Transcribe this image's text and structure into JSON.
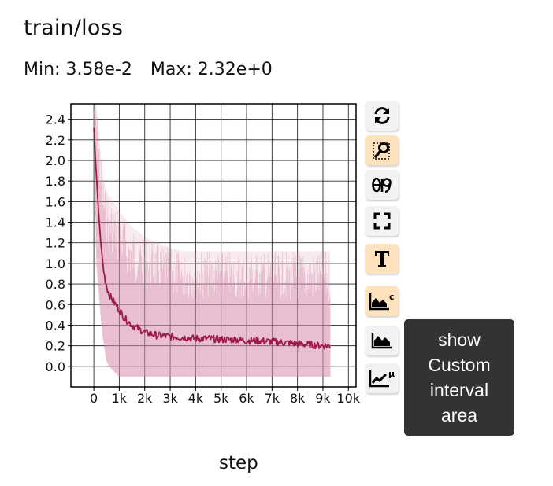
{
  "panel": {
    "title": "train/loss",
    "min_label": "Min: 3.58e-2",
    "max_label": "Max: 2.32e+0"
  },
  "toolbar": {
    "buttons": [
      {
        "icon": "refresh-icon",
        "active": false
      },
      {
        "icon": "zoom-select-icon",
        "active": true
      },
      {
        "icon": "y-log-scale-icon",
        "active": false
      },
      {
        "icon": "fullscreen-icon",
        "active": false
      },
      {
        "icon": "text-T-icon",
        "active": true
      },
      {
        "icon": "custom-interval-area-icon",
        "active": true
      },
      {
        "icon": "area-chart-icon",
        "active": false
      },
      {
        "icon": "smoothing-mu-icon",
        "active": false
      }
    ],
    "tooltip_lines": [
      "show",
      "Custom",
      "interval",
      "area"
    ]
  },
  "chart_data": {
    "type": "line",
    "xlabel": "step",
    "ylabel": "",
    "xlim": [
      -900,
      10300
    ],
    "ylim": [
      -0.2,
      2.55
    ],
    "x_ticks": [
      0,
      1000,
      2000,
      3000,
      4000,
      5000,
      6000,
      7000,
      8000,
      9000,
      10000
    ],
    "x_tick_labels": [
      "0",
      "1k",
      "2k",
      "3k",
      "4k",
      "5k",
      "6k",
      "7k",
      "8k",
      "9k",
      "10k"
    ],
    "y_ticks": [
      0.0,
      0.2,
      0.4,
      0.6,
      0.8,
      1.0,
      1.2,
      1.4,
      1.6,
      1.8,
      2.0,
      2.2,
      2.4
    ],
    "y_tick_labels": [
      "0.0",
      "0.2",
      "0.4",
      "0.6",
      "0.8",
      "1.0",
      "1.2",
      "1.4",
      "1.6",
      "1.8",
      "2.0",
      "2.2",
      "2.4"
    ],
    "grid": true,
    "line_color": "#9e1a4a",
    "band_color": "#d98fad",
    "series": [
      {
        "x": [
          0,
          100,
          200,
          300,
          400,
          500,
          600,
          800,
          1000,
          1200,
          1500,
          1800,
          2000,
          2500,
          3000,
          3500,
          4000,
          4500,
          5000,
          5500,
          6000,
          6500,
          7000,
          7500,
          8000,
          8500,
          9000,
          9300
        ],
        "y": [
          2.32,
          1.85,
          1.45,
          1.12,
          0.9,
          0.78,
          0.7,
          0.62,
          0.55,
          0.47,
          0.4,
          0.36,
          0.33,
          0.3,
          0.29,
          0.28,
          0.27,
          0.27,
          0.26,
          0.26,
          0.25,
          0.25,
          0.24,
          0.23,
          0.22,
          0.21,
          0.2,
          0.2
        ],
        "band_low": [
          2.3,
          1.0,
          0.7,
          0.4,
          0.2,
          0.05,
          0.0,
          -0.05,
          -0.1,
          -0.1,
          -0.1,
          -0.1,
          -0.1,
          -0.1,
          -0.1,
          -0.1,
          -0.1,
          -0.1,
          -0.1,
          -0.1,
          -0.1,
          -0.1,
          -0.1,
          -0.1,
          -0.1,
          -0.1,
          -0.1,
          -0.1
        ],
        "band_high": [
          2.55,
          2.55,
          2.3,
          2.0,
          1.8,
          1.7,
          1.65,
          1.6,
          1.5,
          1.45,
          1.35,
          1.3,
          1.25,
          1.2,
          1.15,
          1.12,
          1.12,
          1.12,
          1.12,
          1.12,
          1.12,
          1.12,
          1.12,
          1.12,
          1.12,
          1.12,
          1.12,
          1.12
        ]
      }
    ]
  }
}
